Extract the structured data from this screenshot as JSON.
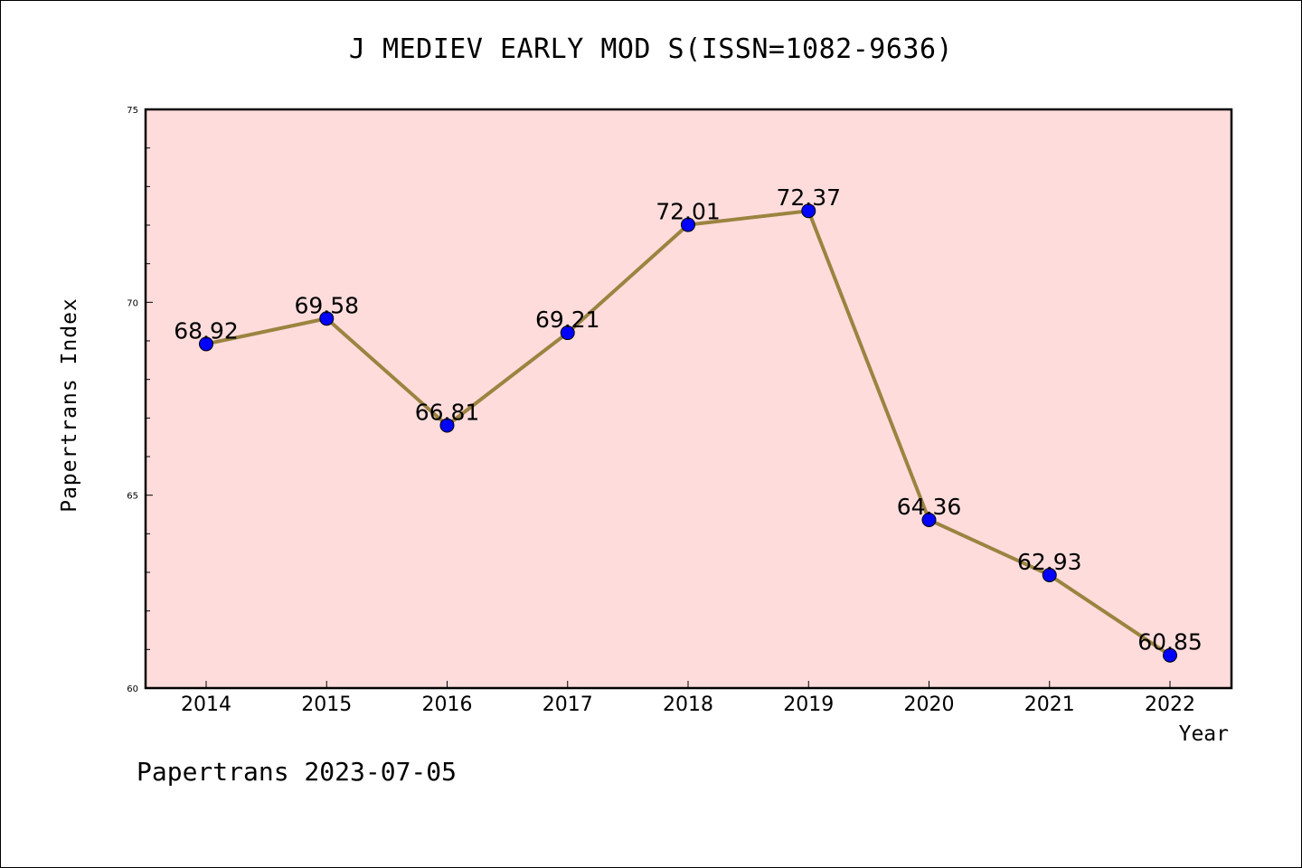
{
  "chart_data": {
    "type": "line",
    "title": "J MEDIEV EARLY MOD S(ISSN=1082-9636)",
    "xlabel": "Year",
    "ylabel": "Papertrans Index",
    "x": [
      "2014",
      "2015",
      "2016",
      "2017",
      "2018",
      "2019",
      "2020",
      "2021",
      "2022"
    ],
    "series": [
      {
        "values": [
          68.92,
          69.58,
          66.81,
          69.21,
          72.01,
          72.37,
          64.36,
          62.93,
          60.85
        ],
        "labels": [
          "68.92",
          "69.58",
          "66.81",
          "69.21",
          "72.01",
          "72.37",
          "64.36",
          "62.93",
          "60.85"
        ]
      }
    ],
    "ylim": [
      60,
      75
    ],
    "yticks": [
      "60",
      "65",
      "70",
      "75"
    ],
    "grid": false,
    "colors": {
      "plot_background": "#ffdcdc",
      "line": "#9a8440",
      "marker": "#0000ff"
    }
  },
  "footer": "Papertrans 2023-07-05"
}
